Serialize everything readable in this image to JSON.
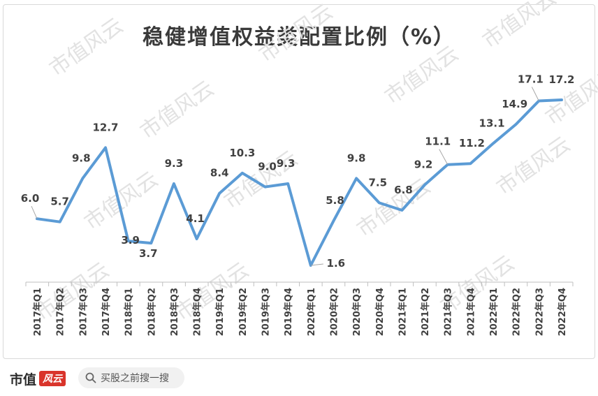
{
  "chart_data": {
    "type": "line",
    "title": "稳健增值权益类配置比例（%）",
    "categories": [
      "2017年Q1",
      "2017年Q2",
      "2017年Q3",
      "2017年Q4",
      "2018年Q1",
      "2018年Q2",
      "2018年Q3",
      "2018年Q4",
      "2019年Q1",
      "2019年Q2",
      "2019年Q3",
      "2019年Q4",
      "2020年Q1",
      "2020年Q2",
      "2020年Q3",
      "2020年Q4",
      "2021年Q1",
      "2021年Q2",
      "2021年Q3",
      "2021年Q4",
      "2022年Q1",
      "2022年Q2",
      "2022年Q3",
      "2022年Q4"
    ],
    "values": [
      6.0,
      5.7,
      9.8,
      12.7,
      3.9,
      3.7,
      9.3,
      4.1,
      8.4,
      10.3,
      9.0,
      9.3,
      1.6,
      5.8,
      9.8,
      7.5,
      6.8,
      9.2,
      11.1,
      11.2,
      13.1,
      14.9,
      17.1,
      17.2
    ],
    "value_labels": [
      "6.0",
      "5.7",
      "9.8",
      "12.7",
      "3.9",
      "3.7",
      "9.3",
      "4.1",
      "8.4",
      "10.3",
      "9.0",
      "9.3",
      "1.6",
      "5.8",
      "9.8",
      "7.5",
      "6.8",
      "9.2",
      "11.1",
      "11.2",
      "13.1",
      "14.9",
      "17.1",
      "17.2"
    ],
    "series_color": "#5b9bd5",
    "grid": false,
    "legend": "none"
  },
  "watermark": "市值风云",
  "footer": {
    "brand_text": "市值",
    "brand_seal": "风云",
    "search_icon": "search-icon",
    "search_text": "买股之前搜一搜"
  }
}
